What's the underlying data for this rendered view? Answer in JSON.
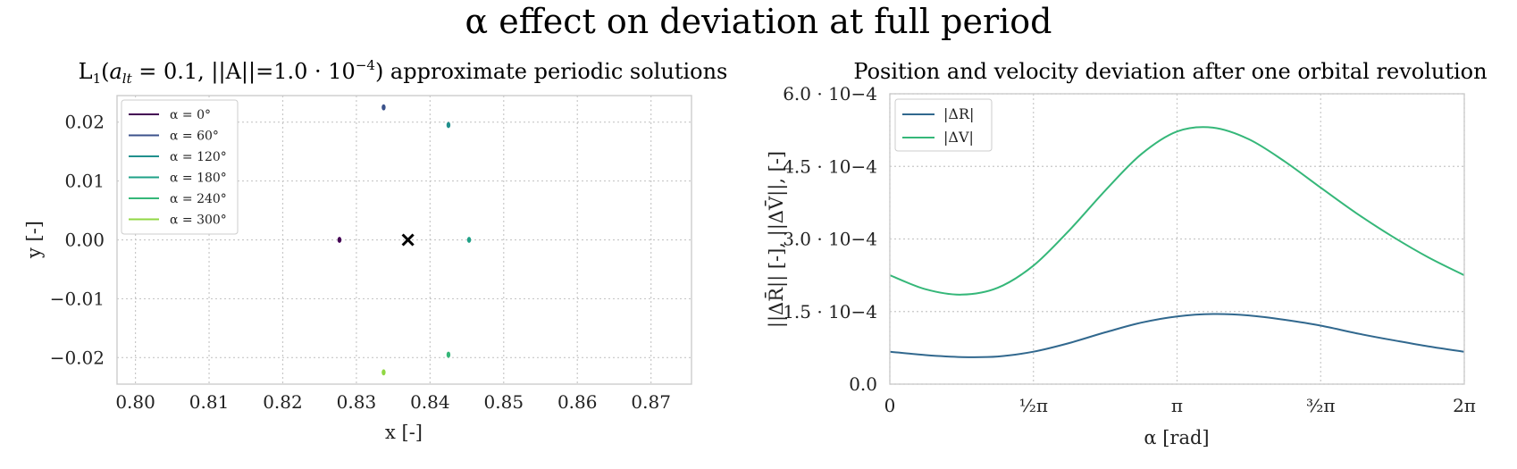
{
  "figure": {
    "title": "α effect on deviation at full period"
  },
  "chart_data": [
    {
      "type": "scatter",
      "title": "L1(alt = 0.1, ||A||=1.0 · 10−4) approximate periodic solutions",
      "title_parts": {
        "l": "L",
        "l_sub": "1",
        "open": "(",
        "a": "a",
        "a_sub": "lt",
        "eq": " = 0.1, ",
        "norm": "||A||=1.0 · 10",
        "exp": "−4",
        "close": ") approximate periodic solutions"
      },
      "xlabel": "x [-]",
      "ylabel": "y [-]",
      "xlim": [
        0.7975,
        0.8755
      ],
      "ylim": [
        -0.0245,
        0.0245
      ],
      "xticks": [
        0.8,
        0.81,
        0.82,
        0.83,
        0.84,
        0.85,
        0.86,
        0.87
      ],
      "xtick_labels": [
        "0.80",
        "0.81",
        "0.82",
        "0.83",
        "0.84",
        "0.85",
        "0.86",
        "0.87"
      ],
      "yticks": [
        0.02,
        0.01,
        0.0,
        -0.01,
        -0.02
      ],
      "ytick_labels": [
        "0.02",
        "0.01",
        "0.00",
        "−0.01",
        "−0.02"
      ],
      "grid": true,
      "legend_position": "top-left",
      "series": [
        {
          "name": "α = 0°",
          "color": "#440154",
          "points": [
            [
              0.8277,
              0.0
            ]
          ]
        },
        {
          "name": "α = 60°",
          "color": "#3b528b",
          "points": [
            [
              0.8337,
              0.0225
            ]
          ]
        },
        {
          "name": "α = 120°",
          "color": "#21908d",
          "points": [
            [
              0.8425,
              0.0195
            ]
          ]
        },
        {
          "name": "α = 180°",
          "color": "#1fa187",
          "points": [
            [
              0.8453,
              0.0
            ]
          ]
        },
        {
          "name": "α = 240°",
          "color": "#35b779",
          "points": [
            [
              0.8425,
              -0.0195
            ]
          ]
        },
        {
          "name": "α = 300°",
          "color": "#90d743",
          "points": [
            [
              0.8337,
              -0.0225
            ]
          ]
        }
      ],
      "marker": {
        "symbol": "cross",
        "color": "#000000",
        "point": [
          0.837,
          0.0
        ]
      }
    },
    {
      "type": "line",
      "title": "Position and velocity deviation after one orbital revolution",
      "xlabel": "α [rad]",
      "ylabel": "||ΔR̄|| [-], ||ΔV̄||, [-]",
      "xlim": [
        0,
        6.2832
      ],
      "ylim": [
        0,
        0.0006
      ],
      "xticks": [
        0,
        1.5708,
        3.1416,
        4.7124,
        6.2832
      ],
      "xtick_labels": [
        "0",
        "½π",
        "π",
        "³⁄₂π",
        "2π"
      ],
      "yticks": [
        0,
        0.00015,
        0.0003,
        0.00045,
        0.0006
      ],
      "ytick_labels": [
        "0.0",
        "1.5 · 10−4",
        "3.0 · 10−4",
        "4.5 · 10−4",
        "6.0 · 10−4"
      ],
      "grid": true,
      "legend_position": "top-left",
      "series": [
        {
          "name": "|ΔR|",
          "color": "#31688e",
          "x": [
            0,
            0.3927,
            0.7854,
            1.1781,
            1.5708,
            1.9635,
            2.3562,
            2.7489,
            3.1416,
            3.5343,
            3.927,
            4.3197,
            4.7124,
            5.1051,
            5.4978,
            5.8905,
            6.2832
          ],
          "y": [
            6.7e-05,
            6e-05,
            5.6e-05,
            5.7e-05,
            6.7e-05,
            8.5e-05,
            0.000107,
            0.000127,
            0.00014,
            0.000145,
            0.000142,
            0.000133,
            0.000121,
            0.000105,
            9.1e-05,
            7.8e-05,
            6.7e-05
          ]
        },
        {
          "name": "|ΔV|",
          "color": "#35b779",
          "x": [
            0,
            0.3927,
            0.7854,
            1.1781,
            1.5708,
            1.9635,
            2.3562,
            2.7489,
            3.1416,
            3.5343,
            3.927,
            4.3197,
            4.7124,
            5.1051,
            5.4978,
            5.8905,
            6.2832
          ],
          "y": [
            0.000225,
            0.000196,
            0.000185,
            0.000199,
            0.000245,
            0.000318,
            0.0004,
            0.000475,
            0.000522,
            0.00053,
            0.000506,
            0.00046,
            0.000406,
            0.000353,
            0.000305,
            0.000262,
            0.000225
          ]
        }
      ]
    }
  ]
}
